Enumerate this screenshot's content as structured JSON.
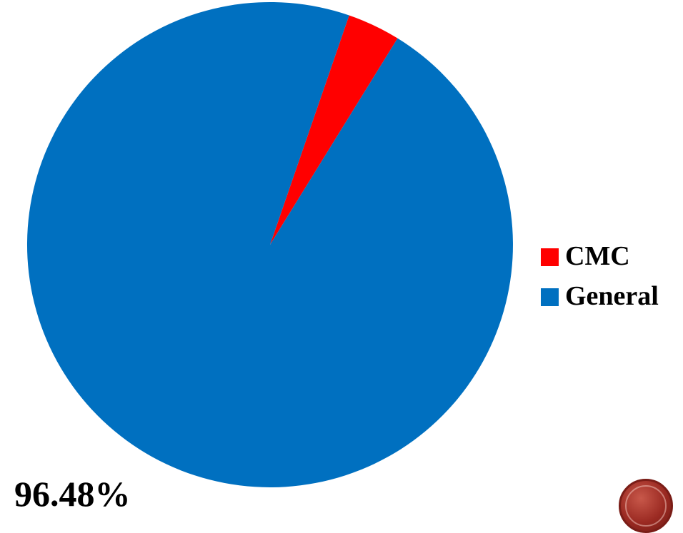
{
  "chart_data": {
    "type": "pie",
    "title": "",
    "slices": [
      {
        "name": "CMC",
        "value": 3.52,
        "color": "#ff0000"
      },
      {
        "name": "General",
        "value": 96.48,
        "color": "#0070c0"
      }
    ],
    "start_angle_deg": 19,
    "data_labels": {
      "general": "96.48%"
    },
    "legend_position": "right"
  },
  "legend": {
    "items": [
      {
        "label": "CMC",
        "color": "#ff0000"
      },
      {
        "label": "General",
        "color": "#0070c0"
      }
    ]
  },
  "logo": {
    "icon": "seal-icon"
  }
}
